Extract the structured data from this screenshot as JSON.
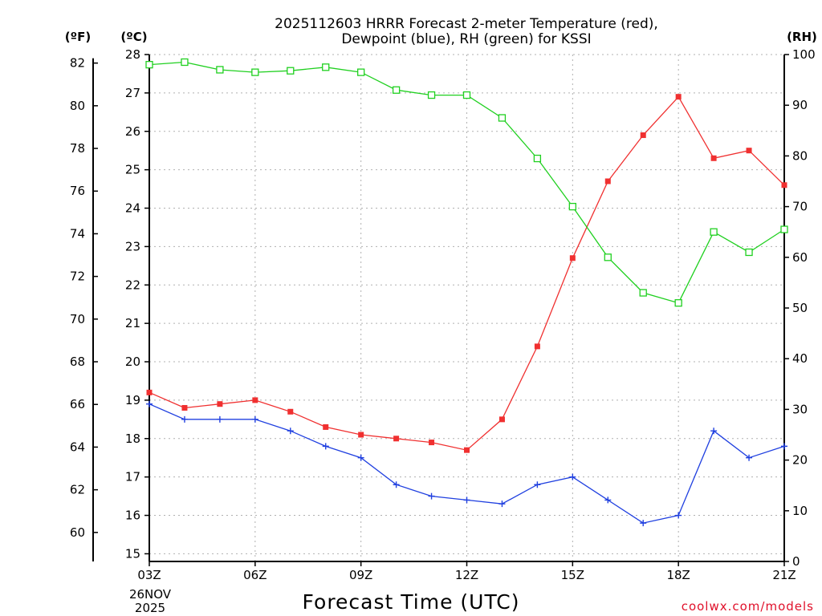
{
  "colors": {
    "temperature": "#f03030",
    "dewpoint": "#2040e0",
    "rh": "#20d020",
    "credit": "#e0102a"
  },
  "chart_data": {
    "type": "line",
    "title_lines": [
      "2025112603 HRRR Forecast 2-meter Temperature (red),",
      "Dewpoint (blue), RH (green) for KSSI"
    ],
    "xlabel": "Forecast Time (UTC)",
    "credit": "coolwx.com/models",
    "date_label": [
      "26NOV",
      "2025"
    ],
    "unit_labels": {
      "fahrenheit": "(ºF)",
      "celsius": "(ºC)",
      "rh": "(RH)"
    },
    "x": [
      3,
      4,
      5,
      6,
      7,
      8,
      9,
      10,
      11,
      12,
      13,
      14,
      15,
      16,
      17,
      18,
      19,
      20,
      21
    ],
    "x_range": [
      3,
      21
    ],
    "x_ticks": [
      {
        "value": 3,
        "label": "03Z"
      },
      {
        "value": 6,
        "label": "06Z"
      },
      {
        "value": 9,
        "label": "09Z"
      },
      {
        "value": 12,
        "label": "12Z"
      },
      {
        "value": 15,
        "label": "15Z"
      },
      {
        "value": 18,
        "label": "18Z"
      },
      {
        "value": 21,
        "label": "21Z"
      }
    ],
    "celsius_axis": {
      "range": [
        14.8,
        28.0
      ],
      "ticks": [
        15,
        16,
        17,
        18,
        19,
        20,
        21,
        22,
        23,
        24,
        25,
        26,
        27,
        28
      ]
    },
    "fahrenheit_axis": {
      "ticks": [
        60,
        62,
        64,
        66,
        68,
        70,
        72,
        74,
        76,
        78,
        80,
        82
      ]
    },
    "rh_axis": {
      "range": [
        0,
        100
      ],
      "ticks": [
        0,
        10,
        20,
        30,
        40,
        50,
        60,
        70,
        80,
        90,
        100
      ]
    },
    "grid": true,
    "series": [
      {
        "name": "Temperature",
        "axis": "celsius",
        "color": "#f03030",
        "marker": "square",
        "values": [
          19.2,
          18.8,
          18.9,
          19.0,
          18.7,
          18.3,
          18.1,
          18.0,
          17.9,
          17.7,
          18.5,
          20.4,
          22.7,
          24.7,
          25.9,
          26.9,
          25.3,
          25.5,
          24.6
        ]
      },
      {
        "name": "Dewpoint",
        "axis": "celsius",
        "color": "#2040e0",
        "marker": "plus",
        "values": [
          18.9,
          18.5,
          18.5,
          18.5,
          18.2,
          17.8,
          17.5,
          16.8,
          16.5,
          16.4,
          16.3,
          16.8,
          17.0,
          16.4,
          15.8,
          16.0,
          18.2,
          17.5,
          17.8
        ]
      },
      {
        "name": "RH",
        "axis": "rh",
        "color": "#20d020",
        "marker": "open-square",
        "values": [
          98,
          98.5,
          97,
          96.5,
          96.8,
          97.5,
          96.5,
          93,
          92,
          92,
          87.5,
          79.5,
          70,
          60,
          53,
          51,
          65,
          61,
          65.5
        ]
      }
    ]
  }
}
